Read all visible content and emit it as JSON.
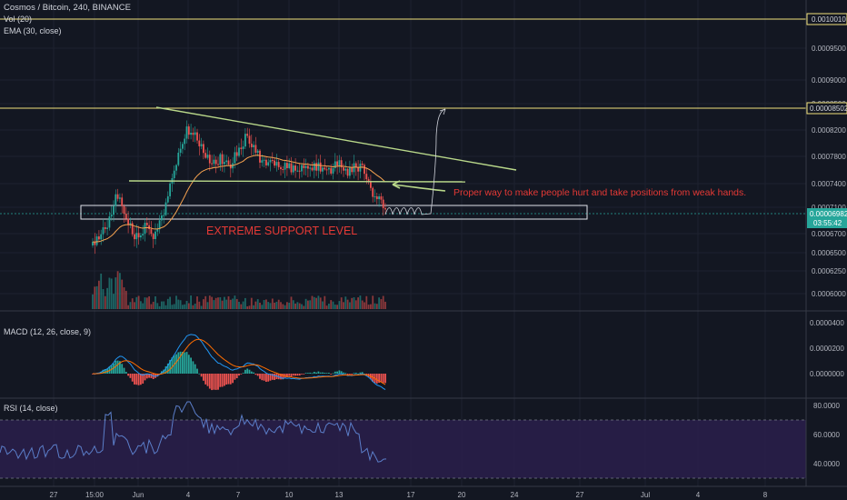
{
  "header": {
    "symbol": "Cosmos / Bitcoin, 240, BINANCE",
    "vol_label": "Vol (20)",
    "ema_label": "EMA (30, close)"
  },
  "annotations": {
    "note": "Proper way to make people hurt and take positions from weak hands.",
    "support": "EXTREME SUPPORT LEVEL"
  },
  "panes": {
    "macd_label": "MACD (12, 26, close, 9)",
    "rsi_label": "RSI (14, close)"
  },
  "price_badges": {
    "top": "0.0010010",
    "resistance": "0.00008502",
    "current": "0.00006982",
    "countdown": "03:55:42"
  },
  "colors": {
    "background": "#131722",
    "up": "#26a69a",
    "down": "#ef5350",
    "ema": "#f7a350",
    "trend": "#b9d88a",
    "note_text": "#e53935",
    "horizontal_line": "#f2e27c",
    "macd": "#2196f3",
    "signal": "#ff6d00",
    "rsi": "#5b7ec9",
    "rsi_band": "#2a1f4b"
  },
  "chart_data": [
    {
      "type": "candlestick",
      "pane": "price",
      "x_ticks": [
        "27",
        "15:00",
        "Jun",
        "4",
        "7",
        "10",
        "13",
        "17",
        "20",
        "24",
        "27",
        "Jul",
        "4",
        "8"
      ],
      "y_ticks": [
        "0.0009500",
        "0.0009000",
        "0.0008500",
        "0.0008200",
        "0.0007800",
        "0.0007400",
        "0.0007100",
        "0.0006700",
        "0.0006500",
        "0.0006250",
        "0.0006000"
      ],
      "series": [
        {
          "name": "Vol (20)",
          "kind": "volume"
        },
        {
          "name": "EMA (30, close)",
          "kind": "line"
        }
      ],
      "levels": {
        "top_horizontal": 0.001001,
        "resistance_horizontal": 8.502e-05,
        "current_price": 6.982e-05
      }
    },
    {
      "type": "line",
      "pane": "macd",
      "title": "MACD (12, 26, close, 9)",
      "y_ticks": [
        "0.0000400",
        "0.0000200",
        "0.0000000"
      ],
      "series": [
        {
          "name": "MACD",
          "kind": "line"
        },
        {
          "name": "Signal",
          "kind": "line"
        },
        {
          "name": "Histogram",
          "kind": "bar"
        }
      ]
    },
    {
      "type": "line",
      "pane": "rsi",
      "title": "RSI (14, close)",
      "y_ticks": [
        "80.0000",
        "60.0000",
        "40.0000"
      ],
      "band": [
        30,
        70
      ],
      "ylim": [
        26,
        86
      ]
    }
  ]
}
